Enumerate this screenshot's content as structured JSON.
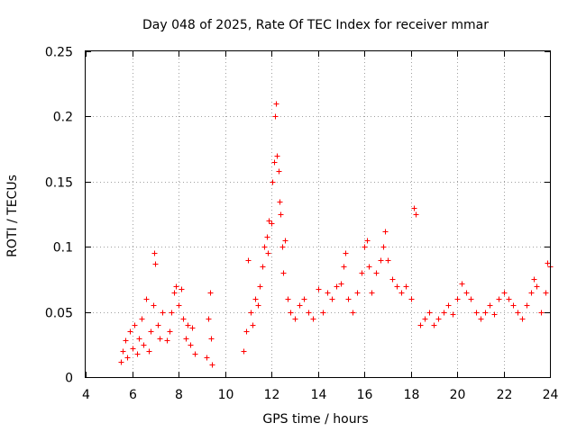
{
  "chart_data": {
    "type": "scatter",
    "title": "Day 048 of 2025, Rate Of TEC Index for receiver mmar",
    "xlabel": "GPS time / hours",
    "ylabel": "ROTI / TECUs",
    "xlim": [
      4,
      24
    ],
    "ylim": [
      0,
      0.25
    ],
    "xticks": [
      4,
      6,
      8,
      10,
      12,
      14,
      16,
      18,
      20,
      22,
      24
    ],
    "xtick_labels": [
      "4",
      "6",
      "8",
      "10",
      "12",
      "14",
      "16",
      "18",
      "20",
      "22",
      "24"
    ],
    "yticks": [
      0,
      0.05,
      0.1,
      0.15,
      0.2,
      0.25
    ],
    "ytick_labels": [
      "0",
      "0.05",
      "0.1",
      "0.15",
      "0.2",
      "0.25"
    ],
    "grid": true,
    "marker": "+",
    "color": "#ff0000",
    "series": [
      {
        "name": "ROTI",
        "points": [
          [
            5.5,
            0.012
          ],
          [
            5.6,
            0.02
          ],
          [
            5.7,
            0.028
          ],
          [
            5.8,
            0.015
          ],
          [
            5.9,
            0.035
          ],
          [
            6.0,
            0.022
          ],
          [
            6.1,
            0.04
          ],
          [
            6.2,
            0.018
          ],
          [
            6.3,
            0.03
          ],
          [
            6.4,
            0.045
          ],
          [
            6.5,
            0.025
          ],
          [
            6.6,
            0.06
          ],
          [
            6.7,
            0.02
          ],
          [
            6.8,
            0.035
          ],
          [
            6.9,
            0.055
          ],
          [
            6.95,
            0.095
          ],
          [
            7.0,
            0.087
          ],
          [
            7.1,
            0.04
          ],
          [
            7.2,
            0.03
          ],
          [
            7.3,
            0.05
          ],
          [
            7.5,
            0.028
          ],
          [
            7.6,
            0.035
          ],
          [
            7.7,
            0.05
          ],
          [
            7.8,
            0.065
          ],
          [
            7.9,
            0.07
          ],
          [
            8.0,
            0.055
          ],
          [
            8.1,
            0.068
          ],
          [
            8.2,
            0.045
          ],
          [
            8.3,
            0.03
          ],
          [
            8.4,
            0.04
          ],
          [
            8.5,
            0.025
          ],
          [
            8.6,
            0.038
          ],
          [
            8.7,
            0.018
          ],
          [
            9.2,
            0.015
          ],
          [
            9.3,
            0.045
          ],
          [
            9.35,
            0.065
          ],
          [
            9.4,
            0.03
          ],
          [
            9.45,
            0.01
          ],
          [
            10.8,
            0.02
          ],
          [
            10.9,
            0.035
          ],
          [
            11.0,
            0.09
          ],
          [
            11.1,
            0.05
          ],
          [
            11.2,
            0.04
          ],
          [
            11.3,
            0.06
          ],
          [
            11.4,
            0.055
          ],
          [
            11.5,
            0.07
          ],
          [
            11.6,
            0.085
          ],
          [
            11.7,
            0.1
          ],
          [
            11.8,
            0.108
          ],
          [
            11.85,
            0.095
          ],
          [
            11.9,
            0.12
          ],
          [
            12.0,
            0.118
          ],
          [
            12.05,
            0.15
          ],
          [
            12.1,
            0.165
          ],
          [
            12.15,
            0.2
          ],
          [
            12.2,
            0.21
          ],
          [
            12.25,
            0.17
          ],
          [
            12.3,
            0.158
          ],
          [
            12.35,
            0.135
          ],
          [
            12.4,
            0.125
          ],
          [
            12.45,
            0.1
          ],
          [
            12.5,
            0.08
          ],
          [
            12.6,
            0.105
          ],
          [
            12.7,
            0.06
          ],
          [
            12.8,
            0.05
          ],
          [
            13.0,
            0.045
          ],
          [
            13.2,
            0.055
          ],
          [
            13.4,
            0.06
          ],
          [
            13.6,
            0.05
          ],
          [
            13.8,
            0.045
          ],
          [
            14.0,
            0.068
          ],
          [
            14.2,
            0.05
          ],
          [
            14.4,
            0.065
          ],
          [
            14.6,
            0.06
          ],
          [
            14.8,
            0.07
          ],
          [
            15.0,
            0.072
          ],
          [
            15.1,
            0.085
          ],
          [
            15.2,
            0.095
          ],
          [
            15.3,
            0.06
          ],
          [
            15.5,
            0.05
          ],
          [
            15.7,
            0.065
          ],
          [
            15.9,
            0.08
          ],
          [
            16.0,
            0.1
          ],
          [
            16.1,
            0.105
          ],
          [
            16.2,
            0.085
          ],
          [
            16.3,
            0.065
          ],
          [
            16.5,
            0.08
          ],
          [
            16.7,
            0.09
          ],
          [
            16.8,
            0.1
          ],
          [
            16.9,
            0.112
          ],
          [
            17.0,
            0.09
          ],
          [
            17.2,
            0.075
          ],
          [
            17.4,
            0.07
          ],
          [
            17.6,
            0.065
          ],
          [
            17.8,
            0.07
          ],
          [
            18.0,
            0.06
          ],
          [
            18.15,
            0.13
          ],
          [
            18.2,
            0.125
          ],
          [
            18.4,
            0.04
          ],
          [
            18.6,
            0.045
          ],
          [
            18.8,
            0.05
          ],
          [
            19.0,
            0.04
          ],
          [
            19.2,
            0.045
          ],
          [
            19.4,
            0.05
          ],
          [
            19.6,
            0.055
          ],
          [
            19.8,
            0.048
          ],
          [
            20.0,
            0.06
          ],
          [
            20.2,
            0.072
          ],
          [
            20.4,
            0.065
          ],
          [
            20.6,
            0.06
          ],
          [
            20.8,
            0.05
          ],
          [
            21.0,
            0.045
          ],
          [
            21.2,
            0.05
          ],
          [
            21.4,
            0.055
          ],
          [
            21.6,
            0.048
          ],
          [
            21.8,
            0.06
          ],
          [
            22.0,
            0.065
          ],
          [
            22.2,
            0.06
          ],
          [
            22.4,
            0.055
          ],
          [
            22.6,
            0.05
          ],
          [
            22.8,
            0.045
          ],
          [
            23.0,
            0.055
          ],
          [
            23.2,
            0.065
          ],
          [
            23.3,
            0.075
          ],
          [
            23.4,
            0.07
          ],
          [
            23.6,
            0.05
          ],
          [
            23.8,
            0.065
          ],
          [
            23.9,
            0.088
          ],
          [
            24.0,
            0.085
          ]
        ]
      }
    ]
  }
}
